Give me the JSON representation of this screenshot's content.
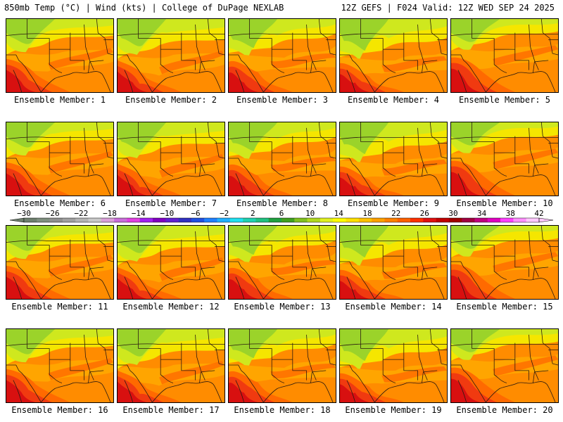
{
  "header": {
    "left": "850mb Temp (°C) | Wind (kts) | College of DuPage NEXLAB",
    "right": "12Z GEFS | F024 Valid: 12Z WED SEP 24 2025"
  },
  "members": [
    "Ensemble Member: 1",
    "Ensemble Member: 2",
    "Ensemble Member: 3",
    "Ensemble Member: 4",
    "Ensemble Member: 5",
    "Ensemble Member: 6",
    "Ensemble Member: 7",
    "Ensemble Member: 8",
    "Ensemble Member: 9",
    "Ensemble Member: 10",
    "Ensemble Member: 11",
    "Ensemble Member: 12",
    "Ensemble Member: 13",
    "Ensemble Member: 14",
    "Ensemble Member: 15",
    "Ensemble Member: 16",
    "Ensemble Member: 17",
    "Ensemble Member: 18",
    "Ensemble Member: 19",
    "Ensemble Member: 20"
  ],
  "colorbar": {
    "labels": [
      "−30",
      "−26",
      "−22",
      "−18",
      "−14",
      "−10",
      "−6",
      "−2",
      "2",
      "6",
      "10",
      "14",
      "18",
      "22",
      "26",
      "30",
      "34",
      "38",
      "42"
    ],
    "colors": [
      "#6e7f6e",
      "#7f8f7f",
      "#8f8f8f",
      "#a0a0a0",
      "#b4b4b4",
      "#c8c8c8",
      "#d9a0d9",
      "#c86ed9",
      "#e040e0",
      "#a020f0",
      "#8000c0",
      "#6020d0",
      "#3030c0",
      "#2050e0",
      "#2080ff",
      "#20b0ff",
      "#20e0f0",
      "#20d0b0",
      "#20c080",
      "#20a040",
      "#40a020",
      "#80c020",
      "#b0d820",
      "#e0f020",
      "#ffff00",
      "#ffe000",
      "#ffc000",
      "#ffa000",
      "#ff8000",
      "#ff6000",
      "#ff3000",
      "#e01010",
      "#c00000",
      "#a00000",
      "#a00040",
      "#c00080",
      "#e000c0",
      "#ff40ff",
      "#ff90ff",
      "#ffc8ff"
    ],
    "unit": ""
  },
  "field_colors": {
    "green": "#9bd32a",
    "yellowgreen": "#cfe81e",
    "yellow": "#f5e600",
    "orange_light": "#ffa500",
    "orange": "#ff8c00",
    "orange_dark": "#ff6a00",
    "red": "#f03a10",
    "deep_red": "#d81010"
  }
}
